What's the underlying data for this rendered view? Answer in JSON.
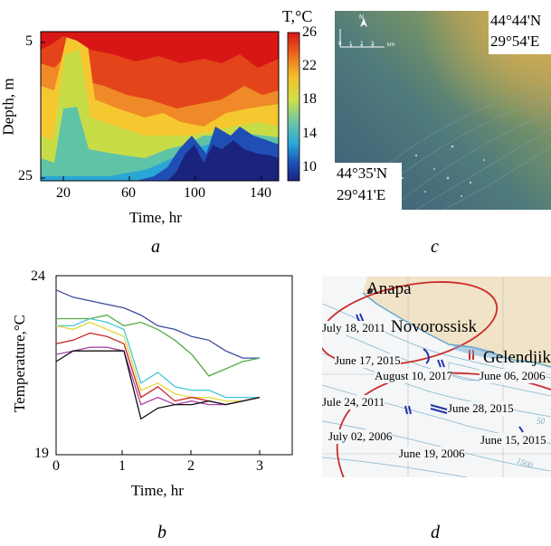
{
  "panels": {
    "a": {
      "letter": "a",
      "colorbar_title": "T,°C",
      "colorbar_ticks": [
        "26",
        "22",
        "18",
        "14",
        "10"
      ],
      "ylabel": "Depth, m",
      "xlabel": "Time, hr",
      "yticks": [
        "5",
        "25"
      ],
      "xticks": [
        "20",
        "60",
        "100",
        "140"
      ]
    },
    "b": {
      "letter": "b",
      "ylabel": "Temperature,°C",
      "xlabel": "Time, hr",
      "yticks": [
        "24",
        "19"
      ],
      "xticks": [
        "0",
        "1",
        "2",
        "3"
      ]
    },
    "c": {
      "letter": "c",
      "coord_top_lat": "44°44'N",
      "coord_top_lon": "29°54'E",
      "coord_bottom_lat": "44°35'N",
      "coord_bottom_lon": "29°41'E",
      "scale_unit": "km",
      "scale_ticks": [
        "0",
        "1",
        "2",
        "3"
      ],
      "north_label": "N"
    },
    "d": {
      "letter": "d",
      "places": [
        "Anapa",
        "Novorossisk",
        "Gelendjik"
      ],
      "dates": [
        "July 18, 2011",
        "June 17, 2015",
        "August 10, 2017",
        "June 06, 2006",
        "Jule 24, 2011",
        "June 28, 2015",
        "July 02, 2006",
        "June 15, 2015",
        "June 19, 2006"
      ],
      "depth_labels": [
        "50",
        "1500"
      ]
    }
  },
  "chart_data": [
    {
      "type": "heatmap",
      "title": "",
      "xlabel": "Time, hr",
      "ylabel": "Depth, m",
      "xlim": [
        5,
        150
      ],
      "ylim": [
        5,
        25
      ],
      "colorbar_label": "T,°C",
      "colorbar_range": [
        8,
        26
      ],
      "thermocline_depth_profile": {
        "time_hr": [
          5,
          10,
          15,
          20,
          25,
          30,
          35,
          40,
          45,
          50,
          55,
          60,
          65,
          70,
          75,
          80,
          85,
          90,
          95,
          100,
          105,
          110,
          115,
          120,
          125,
          130,
          135,
          140,
          145,
          150
        ],
        "depth_26C_m": [
          8,
          9,
          10,
          6,
          5,
          5,
          6,
          9,
          10,
          11,
          10,
          12,
          11,
          12,
          13,
          12,
          12,
          13,
          13,
          12,
          11,
          13,
          12,
          10,
          9,
          11,
          10,
          12,
          11,
          10
        ],
        "depth_10C_m": [
          25,
          25,
          24,
          25,
          25,
          25,
          25,
          25,
          25,
          25,
          25,
          25,
          25,
          24,
          22,
          21,
          23,
          20,
          18,
          16,
          19,
          17,
          18,
          16,
          15,
          17,
          16,
          15,
          16,
          17
        ]
      }
    },
    {
      "type": "line",
      "title": "",
      "xlabel": "Time, hr",
      "ylabel": "Temperature,°C",
      "xlim": [
        0,
        3
      ],
      "ylim": [
        19,
        24
      ],
      "x": [
        0,
        0.25,
        0.5,
        0.75,
        1.0,
        1.25,
        1.5,
        1.75,
        2.0,
        2.25,
        2.5,
        2.75,
        3.0
      ],
      "series": [
        {
          "color": "#3b4aa0",
          "values": [
            23.6,
            23.4,
            23.3,
            23.2,
            23.1,
            22.9,
            22.6,
            22.5,
            22.3,
            22.2,
            21.9,
            21.7,
            21.7
          ]
        },
        {
          "color": "#55aa44",
          "values": [
            22.8,
            22.8,
            22.8,
            22.9,
            22.6,
            22.7,
            22.5,
            22.2,
            21.8,
            21.2,
            21.4,
            21.6,
            21.7
          ]
        },
        {
          "color": "#44c6d8",
          "values": [
            22.6,
            22.6,
            22.8,
            22.7,
            22.5,
            21.0,
            21.3,
            20.9,
            20.8,
            20.8,
            20.6,
            20.6,
            20.6
          ]
        },
        {
          "color": "#e3d63a",
          "values": [
            22.6,
            22.5,
            22.7,
            22.5,
            22.3,
            20.8,
            21.0,
            20.7,
            20.6,
            20.6,
            20.5,
            20.5,
            20.6
          ]
        },
        {
          "color": "#cc2222",
          "values": [
            22.1,
            22.2,
            22.4,
            22.3,
            22.1,
            20.6,
            20.9,
            20.5,
            20.6,
            20.5,
            20.4,
            20.5,
            20.6
          ]
        },
        {
          "color": "#aa44aa",
          "values": [
            21.8,
            21.9,
            22.0,
            22.0,
            21.9,
            20.4,
            20.6,
            20.4,
            20.5,
            20.4,
            20.4,
            20.5,
            20.6
          ]
        },
        {
          "color": "#111111",
          "values": [
            21.6,
            21.9,
            21.9,
            21.9,
            21.9,
            20.0,
            20.3,
            20.4,
            20.4,
            20.5,
            20.4,
            20.5,
            20.6
          ]
        }
      ]
    }
  ]
}
